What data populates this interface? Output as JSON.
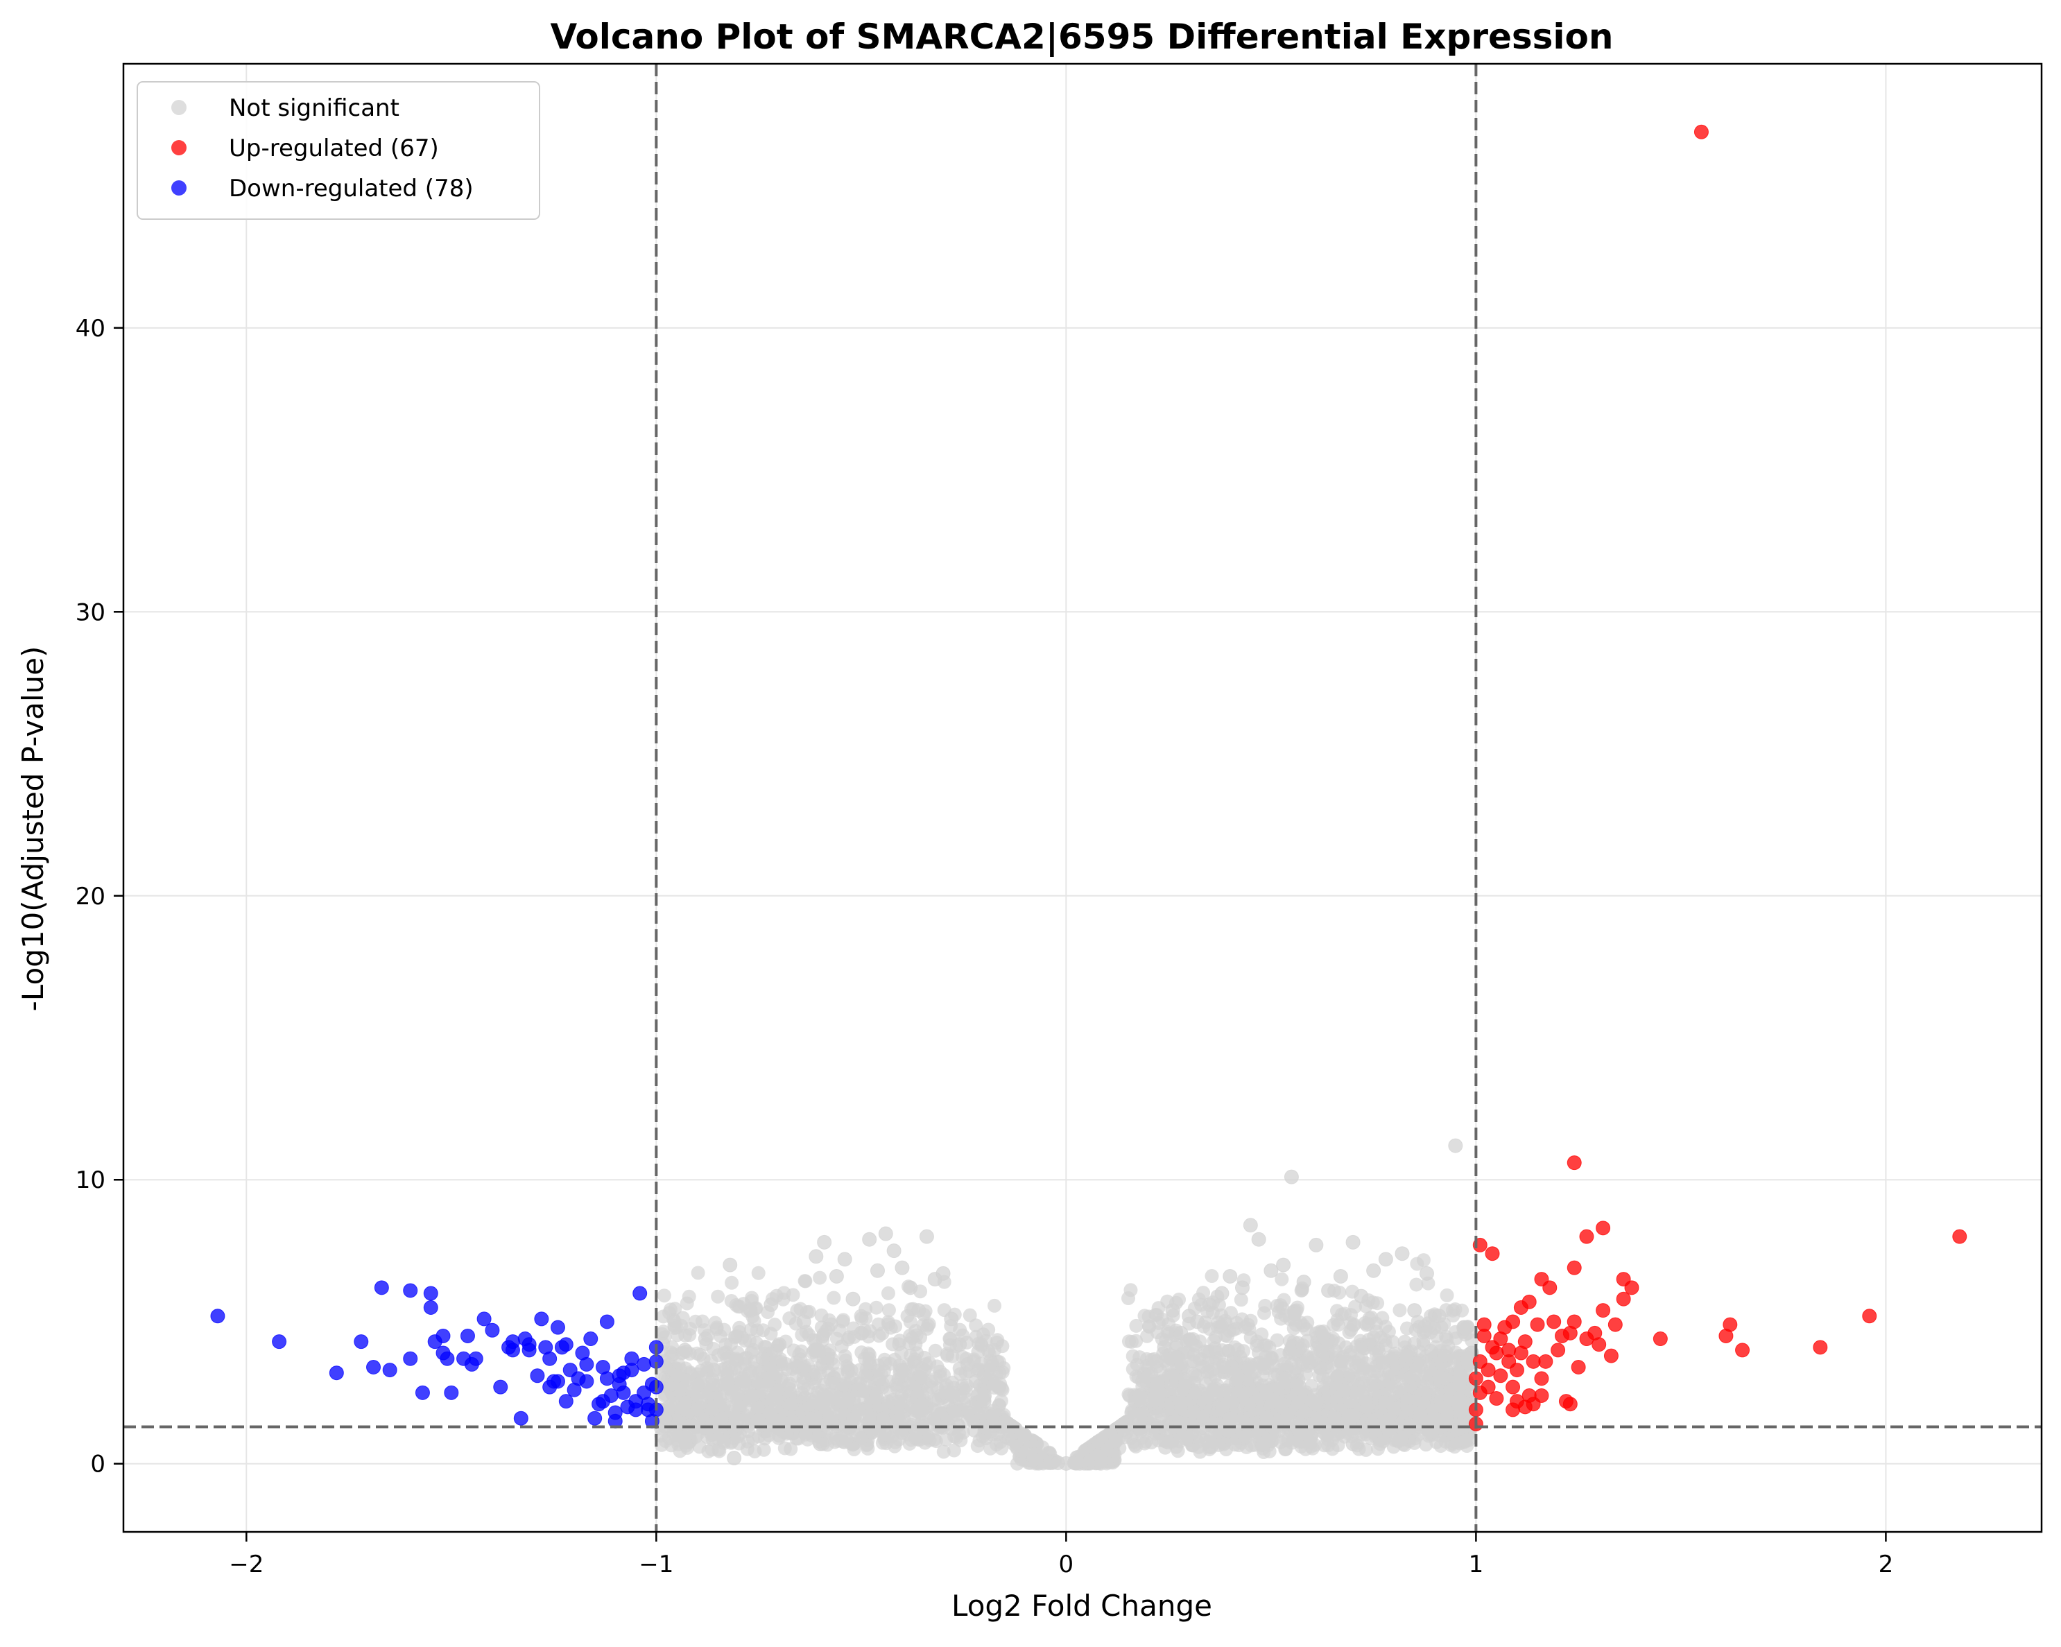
{
  "chart_data": {
    "type": "scatter",
    "title": "Volcano Plot of SMARCA2|6595 Differential Expression",
    "xlabel": "Log2 Fold Change",
    "ylabel": "-Log10(Adjusted P-value)",
    "xlim": [
      -2.3,
      2.38
    ],
    "ylim": [
      -2.4,
      49.3
    ],
    "xticks": [
      -2,
      -1,
      0,
      1,
      2
    ],
    "xtick_labels": [
      "−2",
      "−1",
      "0",
      "1",
      "2"
    ],
    "yticks": [
      0,
      10,
      20,
      30,
      40
    ],
    "ytick_labels": [
      "0",
      "10",
      "20",
      "30",
      "40"
    ],
    "grid": true,
    "legend_position": "top-left",
    "thresholds": {
      "log2fc": [
        -1,
        1
      ],
      "neg_log10_padj": 1.3
    },
    "series": [
      {
        "name": "Not significant",
        "color": "#d3d3d3",
        "points": [
          [
            -0.98,
            3.6
          ],
          [
            -0.95,
            3.1
          ],
          [
            -0.93,
            4.0
          ],
          [
            -0.9,
            2.8
          ],
          [
            -0.88,
            4.4
          ],
          [
            -0.86,
            3.3
          ],
          [
            -0.84,
            1.6
          ],
          [
            -0.82,
            7.0
          ],
          [
            -0.81,
            0.2
          ],
          [
            -0.8,
            2.4
          ],
          [
            -0.77,
            5.4
          ],
          [
            -0.74,
            3.7
          ],
          [
            -0.72,
            5.6
          ],
          [
            -0.7,
            4.2
          ],
          [
            -0.67,
            2.1
          ],
          [
            -0.64,
            5.0
          ],
          [
            -0.61,
            7.3
          ],
          [
            -0.59,
            7.8
          ],
          [
            -0.56,
            6.6
          ],
          [
            -0.54,
            7.2
          ],
          [
            -0.52,
            5.8
          ],
          [
            -0.5,
            4.6
          ],
          [
            -0.48,
            7.9
          ],
          [
            -0.46,
            6.8
          ],
          [
            -0.44,
            8.1
          ],
          [
            -0.42,
            7.5
          ],
          [
            -0.4,
            6.9
          ],
          [
            -0.38,
            6.2
          ],
          [
            -0.36,
            5.4
          ],
          [
            -0.34,
            8.0
          ],
          [
            -0.32,
            6.5
          ],
          [
            -0.3,
            6.7
          ],
          [
            -0.28,
            5.1
          ],
          [
            -0.26,
            4.2
          ],
          [
            -0.24,
            3.5
          ],
          [
            -0.22,
            2.9
          ],
          [
            -0.2,
            2.2
          ],
          [
            -0.18,
            1.7
          ],
          [
            -0.16,
            1.3
          ],
          [
            -0.14,
            0.9
          ],
          [
            -0.12,
            0.6
          ],
          [
            -0.1,
            0.4
          ],
          [
            -0.08,
            0.25
          ],
          [
            -0.06,
            0.15
          ],
          [
            -0.04,
            0.08
          ],
          [
            -0.02,
            0.03
          ],
          [
            0.0,
            0.01
          ],
          [
            0.02,
            0.03
          ],
          [
            0.04,
            0.08
          ],
          [
            0.06,
            0.15
          ],
          [
            0.08,
            0.3
          ],
          [
            0.1,
            0.5
          ],
          [
            0.12,
            0.8
          ],
          [
            0.14,
            1.2
          ],
          [
            0.16,
            1.8
          ],
          [
            0.18,
            2.4
          ],
          [
            0.2,
            3.1
          ],
          [
            0.22,
            3.6
          ],
          [
            0.24,
            4.1
          ],
          [
            0.26,
            5.4
          ],
          [
            0.28,
            4.6
          ],
          [
            0.3,
            5.2
          ],
          [
            0.32,
            5.0
          ],
          [
            0.35,
            5.6
          ],
          [
            0.38,
            6.0
          ],
          [
            0.4,
            6.6
          ],
          [
            0.43,
            6.2
          ],
          [
            0.45,
            8.4
          ],
          [
            0.47,
            7.9
          ],
          [
            0.5,
            6.8
          ],
          [
            0.53,
            7.0
          ],
          [
            0.55,
            10.1
          ],
          [
            0.58,
            6.4
          ],
          [
            0.61,
            7.7
          ],
          [
            0.64,
            6.1
          ],
          [
            0.67,
            6.6
          ],
          [
            0.7,
            7.8
          ],
          [
            0.72,
            5.9
          ],
          [
            0.75,
            6.8
          ],
          [
            0.78,
            7.2
          ],
          [
            0.82,
            7.4
          ],
          [
            0.85,
            5.4
          ],
          [
            0.88,
            6.7
          ],
          [
            0.91,
            5.2
          ],
          [
            0.95,
            11.2
          ],
          [
            0.97,
            4.8
          ],
          [
            0.99,
            3.9
          ],
          [
            -0.7,
            1.0
          ],
          [
            -0.6,
            0.7
          ],
          [
            -0.5,
            0.9
          ],
          [
            -0.4,
            1.1
          ],
          [
            0.4,
            1.2
          ],
          [
            0.5,
            0.8
          ],
          [
            0.6,
            1.4
          ],
          [
            0.7,
            0.7
          ],
          [
            0.8,
            1.9
          ],
          [
            0.9,
            1.6
          ],
          [
            -0.9,
            1.9
          ]
        ]
      },
      {
        "name": "Up-regulated (67)",
        "color": "#ff0000",
        "points": [
          [
            1.55,
            46.9
          ],
          [
            1.24,
            10.6
          ],
          [
            2.18,
            8.0
          ],
          [
            1.31,
            8.3
          ],
          [
            1.27,
            8.0
          ],
          [
            1.01,
            7.7
          ],
          [
            1.04,
            7.4
          ],
          [
            1.24,
            6.9
          ],
          [
            1.36,
            6.5
          ],
          [
            1.38,
            6.2
          ],
          [
            1.36,
            5.8
          ],
          [
            1.31,
            5.4
          ],
          [
            1.96,
            5.2
          ],
          [
            1.62,
            4.9
          ],
          [
            1.61,
            4.5
          ],
          [
            1.45,
            4.4
          ],
          [
            1.65,
            4.0
          ],
          [
            1.84,
            4.1
          ],
          [
            1.16,
            6.5
          ],
          [
            1.18,
            6.2
          ],
          [
            1.13,
            5.7
          ],
          [
            1.11,
            5.5
          ],
          [
            1.02,
            4.9
          ],
          [
            1.07,
            4.8
          ],
          [
            1.09,
            5.0
          ],
          [
            1.12,
            4.3
          ],
          [
            1.2,
            4.0
          ],
          [
            1.23,
            4.6
          ],
          [
            1.29,
            4.6
          ],
          [
            1.3,
            4.2
          ],
          [
            1.33,
            3.8
          ],
          [
            1.25,
            3.4
          ],
          [
            1.16,
            3.0
          ],
          [
            1.03,
            3.3
          ],
          [
            1.05,
            3.9
          ],
          [
            1.08,
            3.6
          ],
          [
            1.1,
            3.3
          ],
          [
            1.06,
            3.1
          ],
          [
            1.0,
            3.0
          ],
          [
            1.01,
            2.5
          ],
          [
            1.03,
            2.7
          ],
          [
            1.09,
            2.7
          ],
          [
            1.13,
            2.4
          ],
          [
            1.16,
            2.4
          ],
          [
            1.22,
            2.2
          ],
          [
            1.23,
            2.1
          ],
          [
            1.14,
            2.1
          ],
          [
            1.12,
            2.0
          ],
          [
            1.09,
            1.9
          ],
          [
            1.0,
            1.9
          ],
          [
            1.0,
            1.4
          ],
          [
            1.24,
            5.0
          ],
          [
            1.02,
            4.5
          ],
          [
            1.11,
            3.9
          ],
          [
            1.14,
            3.6
          ],
          [
            1.17,
            3.6
          ],
          [
            1.21,
            4.5
          ],
          [
            1.04,
            4.1
          ],
          [
            1.06,
            4.4
          ],
          [
            1.08,
            4.0
          ],
          [
            1.19,
            5.0
          ],
          [
            1.15,
            4.9
          ],
          [
            1.27,
            4.4
          ],
          [
            1.34,
            4.9
          ],
          [
            1.05,
            2.3
          ],
          [
            1.1,
            2.2
          ],
          [
            1.01,
            3.6
          ]
        ]
      },
      {
        "name": "Down-regulated (78)",
        "color": "#0000ff",
        "points": [
          [
            -2.07,
            5.2
          ],
          [
            -1.92,
            4.3
          ],
          [
            -1.78,
            3.2
          ],
          [
            -1.72,
            4.3
          ],
          [
            -1.69,
            3.4
          ],
          [
            -1.67,
            6.2
          ],
          [
            -1.65,
            3.3
          ],
          [
            -1.6,
            6.1
          ],
          [
            -1.6,
            3.7
          ],
          [
            -1.57,
            2.5
          ],
          [
            -1.55,
            6.0
          ],
          [
            -1.55,
            5.5
          ],
          [
            -1.54,
            4.3
          ],
          [
            -1.52,
            4.5
          ],
          [
            -1.52,
            3.9
          ],
          [
            -1.51,
            3.7
          ],
          [
            -1.5,
            2.5
          ],
          [
            -1.47,
            3.7
          ],
          [
            -1.46,
            4.5
          ],
          [
            -1.45,
            3.5
          ],
          [
            -1.44,
            3.7
          ],
          [
            -1.42,
            5.1
          ],
          [
            -1.4,
            4.7
          ],
          [
            -1.38,
            2.7
          ],
          [
            -1.35,
            4.0
          ],
          [
            -1.35,
            4.3
          ],
          [
            -1.33,
            1.6
          ],
          [
            -1.32,
            4.4
          ],
          [
            -1.31,
            4.0
          ],
          [
            -1.29,
            3.1
          ],
          [
            -1.28,
            5.1
          ],
          [
            -1.27,
            4.1
          ],
          [
            -1.26,
            2.7
          ],
          [
            -1.25,
            2.9
          ],
          [
            -1.24,
            4.8
          ],
          [
            -1.24,
            2.9
          ],
          [
            -1.23,
            4.1
          ],
          [
            -1.22,
            2.2
          ],
          [
            -1.22,
            4.2
          ],
          [
            -1.21,
            3.3
          ],
          [
            -1.2,
            2.6
          ],
          [
            -1.19,
            3.0
          ],
          [
            -1.18,
            3.9
          ],
          [
            -1.17,
            3.5
          ],
          [
            -1.16,
            4.4
          ],
          [
            -1.15,
            1.6
          ],
          [
            -1.14,
            2.1
          ],
          [
            -1.13,
            3.4
          ],
          [
            -1.12,
            5.0
          ],
          [
            -1.12,
            3.0
          ],
          [
            -1.11,
            2.4
          ],
          [
            -1.1,
            1.8
          ],
          [
            -1.1,
            1.5
          ],
          [
            -1.09,
            2.8
          ],
          [
            -1.09,
            3.1
          ],
          [
            -1.08,
            3.2
          ],
          [
            -1.08,
            2.5
          ],
          [
            -1.07,
            2.0
          ],
          [
            -1.06,
            3.7
          ],
          [
            -1.05,
            2.2
          ],
          [
            -1.05,
            1.9
          ],
          [
            -1.06,
            3.3
          ],
          [
            -1.04,
            6.0
          ],
          [
            -1.03,
            3.5
          ],
          [
            -1.03,
            2.5
          ],
          [
            -1.02,
            2.1
          ],
          [
            -1.02,
            1.9
          ],
          [
            -1.01,
            1.5
          ],
          [
            -1.01,
            2.8
          ],
          [
            -1.0,
            4.1
          ],
          [
            -1.0,
            3.6
          ],
          [
            -1.0,
            2.7
          ],
          [
            -1.0,
            1.9
          ],
          [
            -1.13,
            2.2
          ],
          [
            -1.17,
            2.9
          ],
          [
            -1.26,
            3.7
          ],
          [
            -1.31,
            4.2
          ],
          [
            -1.36,
            4.1
          ]
        ]
      }
    ],
    "background_cloud": {
      "note_color": "#d3d3d3",
      "count_left": 1400,
      "count_right": 1900,
      "x_range": [
        -0.99,
        0.99
      ]
    }
  }
}
